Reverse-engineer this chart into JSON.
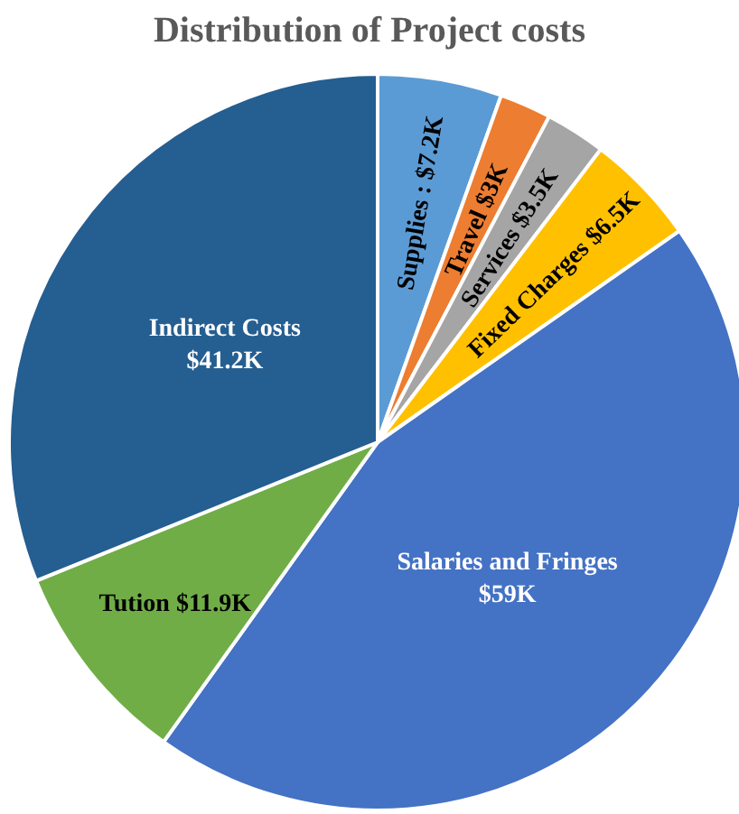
{
  "chart_data": {
    "type": "pie",
    "title": "Distribution of Project costs",
    "categories": [
      "Supplies",
      "Travel",
      "Services",
      "Fixed Charges",
      "Salaries and Fringes",
      "Tution",
      "Indirect Costs"
    ],
    "values": [
      7.2,
      3,
      3.5,
      6.5,
      59,
      11.9,
      41.2
    ],
    "value_labels": [
      "$7.2K",
      "$3K",
      "$3.5K",
      "$6.5K",
      "$59K",
      "$11.9K",
      "$41.2K"
    ],
    "colors": [
      "#5b9bd5",
      "#ed7d31",
      "#a5a5a5",
      "#ffc000",
      "#4472c4",
      "#70ad47",
      "#255e91"
    ]
  }
}
